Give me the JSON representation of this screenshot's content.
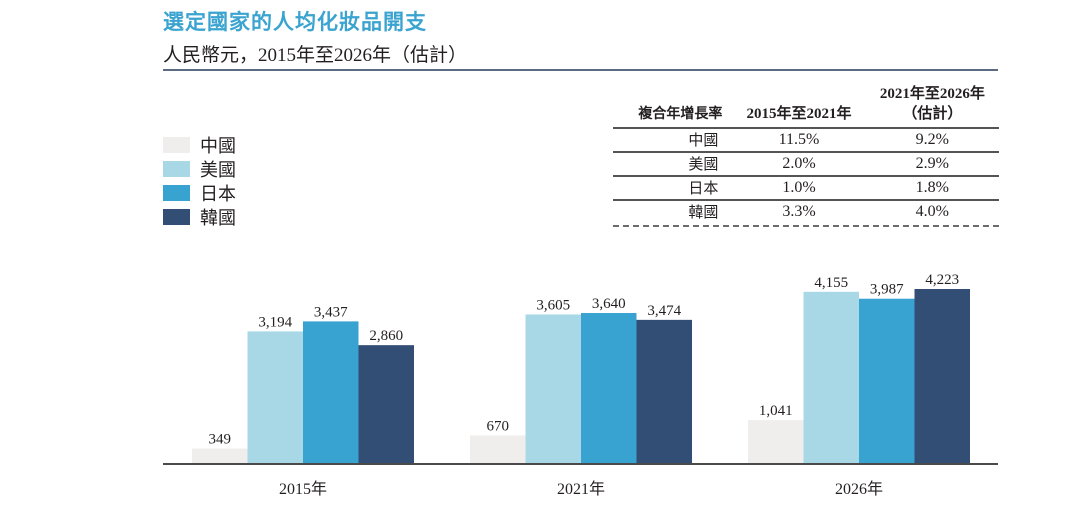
{
  "title": "選定國家的人均化妝品開支",
  "subtitle": "人民幣元，2015年至2026年（估計）",
  "legend": [
    {
      "label": "中國",
      "color": "#efeeec"
    },
    {
      "label": "美國",
      "color": "#a8d8e6"
    },
    {
      "label": "日本",
      "color": "#38a2d1"
    },
    {
      "label": "韓國",
      "color": "#324e74"
    }
  ],
  "cagr_table": {
    "header": {
      "col0": "複合年增長率",
      "col1": "2015年至2021年",
      "col2_line1": "2021年至2026年",
      "col2_line2": "（估計）"
    },
    "rows": [
      {
        "country": "中國",
        "p1": "11.5%",
        "p2": "9.2%"
      },
      {
        "country": "美國",
        "p1": "2.0%",
        "p2": "2.9%"
      },
      {
        "country": "日本",
        "p1": "1.0%",
        "p2": "1.8%"
      },
      {
        "country": "韓國",
        "p1": "3.3%",
        "p2": "4.0%"
      }
    ]
  },
  "chart_data": {
    "type": "bar",
    "title": "選定國家的人均化妝品開支",
    "subtitle": "人民幣元，2015年至2026年（估計）",
    "xlabel": "",
    "ylabel": "人民幣元",
    "categories": [
      "2015年",
      "2021年",
      "2026年"
    ],
    "series": [
      {
        "name": "中國",
        "values": [
          349,
          670,
          1041
        ],
        "labels": [
          "349",
          "670",
          "1,041"
        ],
        "color": "#efeeec"
      },
      {
        "name": "美國",
        "values": [
          3194,
          3605,
          4155
        ],
        "labels": [
          "3,194",
          "3,605",
          "4,155"
        ],
        "color": "#a8d8e6"
      },
      {
        "name": "日本",
        "values": [
          3437,
          3640,
          3987
        ],
        "labels": [
          "3,437",
          "3,640",
          "3,987"
        ],
        "color": "#38a2d1"
      },
      {
        "name": "韓國",
        "values": [
          2860,
          3474,
          4223
        ],
        "labels": [
          "2,860",
          "3,474",
          "4,223"
        ],
        "color": "#324e74"
      }
    ],
    "ylim": [
      0,
      4223
    ],
    "grid": false,
    "legend_position": "top-left"
  }
}
